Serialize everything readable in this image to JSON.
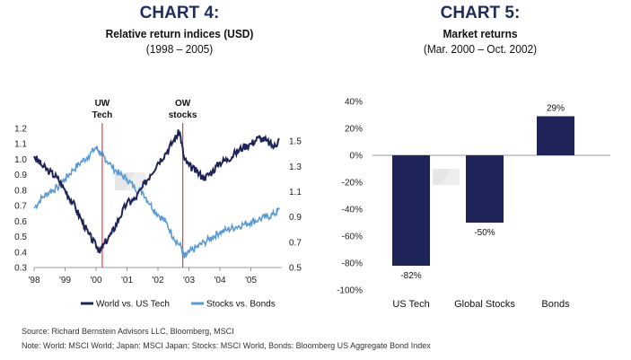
{
  "chart4": {
    "title": "CHART 4:",
    "subtitle": "Relative return indices (USD)",
    "period": "(1998 – 2005)"
  },
  "chart5": {
    "title": "CHART 5:",
    "subtitle": "Market returns",
    "period": "(Mar. 2000 – Oct. 2002)"
  },
  "footer": {
    "source": "Source: Richard Bernstein Advisors LLC, Bloomberg, MSCI",
    "note": "Note: World: MSCI World; Japan: MSCI Japan; Stocks: MSCI World, Bonds: Bloomberg US Aggregate Bond Index"
  },
  "colors": {
    "title": "#1e2c5e",
    "navy": "#1e2457",
    "light_blue": "#5b9bd5",
    "marker_red": "#e04040"
  },
  "chart_data": [
    {
      "type": "line",
      "x_ticks": [
        "'98",
        "'99",
        "'00",
        "'01",
        "'02",
        "'03",
        "'04",
        "'05"
      ],
      "xlim": [
        1998,
        2006
      ],
      "left_axis": {
        "ticks": [
          "0.3",
          "0.4",
          "0.5",
          "0.6",
          "0.7",
          "0.8",
          "0.9",
          "1.0",
          "1.1",
          "1.2"
        ],
        "ylim": [
          0.3,
          1.2
        ]
      },
      "right_axis": {
        "ticks": [
          "0.5",
          "0.7",
          "0.9",
          "1.1",
          "1.3",
          "1.5"
        ],
        "ylim": [
          0.5,
          1.6
        ]
      },
      "series": [
        {
          "name": "World vs. US Tech",
          "axis": "left",
          "x": [
            1998.0,
            1998.25,
            1998.5,
            1998.75,
            1999.0,
            1999.25,
            1999.5,
            1999.75,
            2000.0,
            2000.15,
            2000.25,
            2000.5,
            2000.75,
            2001.0,
            2001.25,
            2001.5,
            2001.75,
            2002.0,
            2002.25,
            2002.5,
            2002.7,
            2002.85,
            2003.0,
            2003.25,
            2003.5,
            2003.75,
            2004.0,
            2004.25,
            2004.5,
            2004.75,
            2005.0,
            2005.25,
            2005.5,
            2005.75,
            2005.92
          ],
          "y": [
            1.02,
            0.96,
            0.92,
            0.88,
            0.8,
            0.72,
            0.62,
            0.52,
            0.44,
            0.41,
            0.45,
            0.52,
            0.62,
            0.72,
            0.74,
            0.82,
            0.9,
            0.98,
            1.04,
            1.12,
            1.18,
            1.0,
            0.96,
            0.92,
            0.88,
            0.92,
            0.98,
            1.0,
            1.04,
            1.08,
            1.1,
            1.14,
            1.12,
            1.08,
            1.13
          ]
        },
        {
          "name": "Stocks vs. Bonds",
          "axis": "right",
          "x": [
            1998.0,
            1998.25,
            1998.5,
            1998.75,
            1999.0,
            1999.25,
            1999.5,
            1999.75,
            2000.0,
            2000.15,
            2000.25,
            2000.5,
            2000.75,
            2001.0,
            2001.25,
            2001.5,
            2001.75,
            2002.0,
            2002.25,
            2002.5,
            2002.75,
            2002.85,
            2003.0,
            2003.25,
            2003.5,
            2003.75,
            2004.0,
            2004.25,
            2004.5,
            2004.75,
            2005.0,
            2005.25,
            2005.5,
            2005.75,
            2005.92
          ],
          "y": [
            0.97,
            1.05,
            1.1,
            1.13,
            1.2,
            1.27,
            1.33,
            1.38,
            1.45,
            1.4,
            1.38,
            1.3,
            1.24,
            1.2,
            1.13,
            1.1,
            1.0,
            0.92,
            0.86,
            0.74,
            0.66,
            0.58,
            0.62,
            0.66,
            0.7,
            0.74,
            0.78,
            0.8,
            0.82,
            0.84,
            0.86,
            0.88,
            0.9,
            0.92,
            0.96
          ]
        }
      ],
      "vlines": [
        {
          "x": 2000.2,
          "label": [
            "UW",
            "Tech"
          ]
        },
        {
          "x": 2002.8,
          "label": [
            "OW",
            "stocks"
          ]
        }
      ],
      "legend_position": "bottom",
      "grid": false
    },
    {
      "type": "bar",
      "categories": [
        "US Tech",
        "Global Stocks",
        "Bonds"
      ],
      "values": [
        -82,
        -50,
        29
      ],
      "data_labels": [
        "-82%",
        "-50%",
        "29%"
      ],
      "y_ticks": [
        "40%",
        "20%",
        "0%",
        "-20%",
        "-40%",
        "-60%",
        "-80%",
        "-100%"
      ],
      "ylim": [
        -100,
        40
      ],
      "grid": false
    }
  ]
}
